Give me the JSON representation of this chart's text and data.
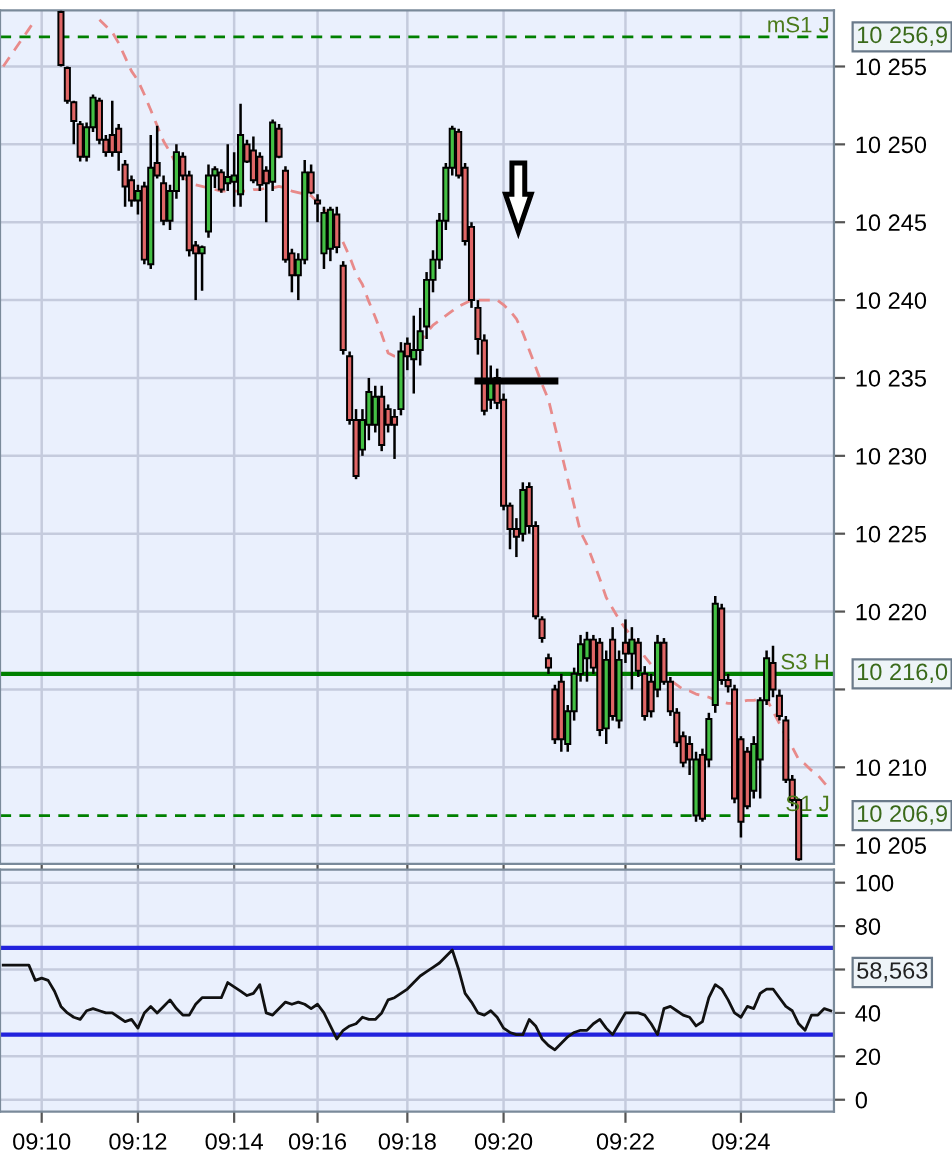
{
  "chart_data": [
    {
      "type": "candlestick",
      "categories": [
        null,
        null,
        null,
        null,
        null,
        null,
        null,
        null,
        null,
        null,
        null,
        null,
        null,
        null,
        null,
        null,
        null,
        null,
        null,
        null,
        null,
        null,
        null,
        null,
        null,
        null,
        null,
        null,
        null,
        null,
        null,
        null,
        null,
        null,
        null,
        null,
        null,
        null,
        null,
        null,
        null,
        null,
        null,
        null,
        null,
        null,
        null,
        null,
        null,
        null,
        null,
        null,
        null,
        null,
        null,
        null,
        null,
        null,
        null,
        null,
        null,
        null,
        null,
        null,
        null,
        null,
        null,
        null,
        null,
        null,
        null,
        null,
        null,
        null,
        null,
        null,
        null,
        null,
        null,
        null,
        null,
        null,
        null,
        null,
        null,
        null,
        null,
        null,
        null,
        null,
        null,
        null,
        null,
        null,
        null,
        null,
        null,
        null,
        null,
        null,
        null,
        null,
        null,
        null,
        null,
        null,
        null,
        null,
        null,
        null,
        null,
        null,
        null,
        null,
        null,
        null,
        null,
        null,
        null,
        null,
        null,
        null,
        null,
        null,
        null,
        null,
        null,
        null,
        null,
        null
      ],
      "ohlc": [
        null,
        null,
        null,
        null,
        null,
        null,
        null,
        null,
        null,
        [
          10258.5,
          10258.6,
          10255.0,
          10255.1
        ],
        [
          10254.9,
          10255.0,
          10252.6,
          10252.8
        ],
        [
          10252.7,
          10252.8,
          10250.0,
          10251.5
        ],
        [
          10251.3,
          10251.5,
          10248.9,
          10249.2
        ],
        [
          10249.2,
          10251.4,
          10248.9,
          10251.1
        ],
        [
          10251.1,
          10253.2,
          10250.8,
          10253.0
        ],
        [
          10252.8,
          10253.0,
          10250.0,
          10250.3
        ],
        [
          10250.3,
          10250.6,
          10249.2,
          10249.5
        ],
        [
          10250.6,
          10252.8,
          10249.2,
          10249.5
        ],
        [
          10251.0,
          10251.3,
          10248.3,
          10249.5
        ],
        [
          10248.7,
          10249.0,
          10246.0,
          10247.3
        ],
        [
          10247.7,
          10248.0,
          10246.0,
          10246.4
        ],
        [
          10246.4,
          10247.4,
          10245.5,
          10247.0
        ],
        [
          10247.3,
          10247.6,
          10242.3,
          10242.6
        ],
        [
          10242.3,
          10250.6,
          10242.0,
          10248.5
        ],
        [
          10248.8,
          10251.2,
          10247.8,
          10248.0
        ],
        [
          10247.5,
          10248.0,
          10244.8,
          10245.1
        ],
        [
          10245.1,
          10247.4,
          10244.5,
          10247.0
        ],
        [
          10247.0,
          10250.0,
          10246.5,
          10249.5
        ],
        [
          10249.2,
          10249.5,
          10247.7,
          10248.0
        ],
        [
          10248.0,
          10248.3,
          10242.8,
          10243.2
        ],
        [
          10243.5,
          10243.8,
          10240.0,
          10243.0
        ],
        [
          10243.0,
          10243.5,
          10240.6,
          10243.4
        ],
        [
          10244.4,
          10248.7,
          10244.0,
          10248.0
        ],
        [
          10248.0,
          10248.6,
          10247.2,
          10248.4
        ],
        [
          10248.2,
          10248.4,
          10246.9,
          10247.1
        ],
        [
          10247.5,
          10250.0,
          10247.0,
          10247.9
        ],
        [
          10247.6,
          10249.5,
          10246.0,
          10248.0
        ],
        [
          10246.8,
          10252.6,
          10246.0,
          10250.6
        ],
        [
          10250.0,
          10250.3,
          10248.8,
          10248.9
        ],
        [
          10249.6,
          10250.5,
          10247.5,
          10247.7
        ],
        [
          10249.2,
          10249.5,
          10247.0,
          10247.4
        ],
        [
          10248.3,
          10248.6,
          10245.0,
          10247.5
        ],
        [
          10247.6,
          10251.6,
          10247.0,
          10251.4
        ],
        [
          10251.0,
          10251.3,
          10249.1,
          10249.2
        ],
        [
          10248.3,
          10248.6,
          10242.4,
          10242.6
        ],
        [
          10243.0,
          10243.3,
          10240.5,
          10241.6
        ],
        [
          10241.6,
          10243.0,
          10240.0,
          10242.6
        ],
        [
          10242.6,
          10249.0,
          10242.3,
          10248.2
        ],
        [
          10248.2,
          10248.7,
          10246.8,
          10246.9
        ],
        [
          10246.4,
          10246.8,
          10245.0,
          10246.2
        ],
        [
          10243.0,
          10246.0,
          10242.0,
          10245.6
        ],
        [
          10243.3,
          10246.0,
          10242.5,
          10245.8
        ],
        [
          10245.5,
          10246.0,
          10243.0,
          10243.4
        ],
        [
          10242.2,
          10242.5,
          10236.5,
          10236.8
        ],
        [
          10236.4,
          10236.7,
          10232.0,
          10232.3
        ],
        [
          10232.3,
          10233.0,
          10228.5,
          10228.7
        ],
        [
          10230.4,
          10233.0,
          10230.0,
          10232.3
        ],
        [
          10232.0,
          10235.0,
          10231.0,
          10234.1
        ],
        [
          10232.0,
          10234.5,
          10231.5,
          10233.8
        ],
        [
          10233.8,
          10234.5,
          10230.3,
          10230.7
        ],
        [
          10233.0,
          10233.3,
          10231.5,
          10232.0
        ],
        [
          10232.5,
          10233.0,
          10229.8,
          10232.0
        ],
        [
          10233.0,
          10237.3,
          10232.6,
          10236.7
        ],
        [
          10237.2,
          10237.6,
          10235.5,
          10236.4
        ],
        [
          10236.2,
          10239.0,
          10234.0,
          10236.8
        ],
        [
          10236.8,
          10239.5,
          10235.8,
          10238.0
        ],
        [
          10238.3,
          10241.8,
          10237.5,
          10241.3
        ],
        [
          10241.3,
          10243.2,
          10240.5,
          10242.6
        ],
        [
          10242.6,
          10245.6,
          10242.0,
          10245.1
        ],
        [
          10245.1,
          10248.8,
          10244.5,
          10248.5
        ],
        [
          10248.5,
          10251.2,
          10248.0,
          10251.0
        ],
        [
          10250.8,
          10251.0,
          10247.8,
          10248.0
        ],
        [
          10248.5,
          10248.8,
          10243.5,
          10243.8
        ],
        [
          10244.7,
          10245.0,
          10239.5,
          10240.0
        ],
        [
          10239.5,
          10240.0,
          10236.5,
          10237.5
        ],
        [
          10237.4,
          10237.8,
          10232.6,
          10232.9
        ],
        [
          10233.6,
          10235.8,
          10233.0,
          10234.9
        ],
        [
          10235.0,
          10235.6,
          10233.0,
          10233.4
        ],
        [
          10233.6,
          10234.0,
          10226.5,
          10226.8
        ],
        [
          10226.8,
          10227.0,
          10224.0,
          10225.3
        ],
        [
          10225.3,
          10226.0,
          10223.5,
          10224.8
        ],
        [
          10225.0,
          10228.3,
          10224.5,
          10227.8
        ],
        [
          10228.0,
          10228.3,
          10225.0,
          10225.5
        ],
        [
          10225.5,
          10225.8,
          10219.5,
          10219.7
        ],
        [
          10219.5,
          10219.7,
          10218.0,
          10218.3
        ],
        [
          10217.0,
          10217.3,
          10216.0,
          10216.4
        ],
        [
          10215.0,
          10215.3,
          10211.5,
          10211.8
        ],
        [
          10215.5,
          10216.0,
          10211.0,
          10211.8
        ],
        [
          10211.5,
          10214.0,
          10211.0,
          10213.6
        ],
        [
          10213.6,
          10216.4,
          10213.0,
          10216.0
        ],
        [
          10216.0,
          10218.5,
          10215.5,
          10217.9
        ],
        [
          10217.0,
          10218.7,
          10215.5,
          10218.2
        ],
        [
          10218.2,
          10218.5,
          10216.0,
          10216.4
        ],
        [
          10218.0,
          10218.3,
          10212.0,
          10212.4
        ],
        [
          10212.5,
          10217.5,
          10211.5,
          10216.9
        ],
        [
          10218.2,
          10219.0,
          10213.0,
          10213.3
        ],
        [
          10213.0,
          10217.5,
          10212.5,
          10216.9
        ],
        [
          10218.0,
          10219.5,
          10216.7,
          10217.3
        ],
        [
          10217.3,
          10219.0,
          10215.0,
          10218.2
        ],
        [
          10218.0,
          10218.3,
          10215.8,
          10216.2
        ],
        [
          10216.0,
          10216.5,
          10213.0,
          10213.3
        ],
        [
          10215.5,
          10216.0,
          10213.2,
          10213.6
        ],
        [
          10215.0,
          10218.5,
          10214.5,
          10218.0
        ],
        [
          10218.0,
          10218.3,
          10215.3,
          10215.5
        ],
        [
          10215.5,
          10215.8,
          10213.3,
          10213.6
        ],
        [
          10213.5,
          10213.8,
          10211.3,
          10211.6
        ],
        [
          10212.0,
          10212.3,
          10210.0,
          10210.3
        ],
        [
          10211.5,
          10212.0,
          10209.5,
          10210.5
        ],
        [
          10206.9,
          10211.0,
          10206.5,
          10210.5
        ],
        [
          10210.8,
          10211.2,
          10206.5,
          10206.7
        ],
        [
          10210.5,
          10213.5,
          10210.0,
          10213.1
        ],
        [
          10214.0,
          10221.0,
          10213.5,
          10220.5
        ],
        [
          10220.2,
          10220.5,
          10215.3,
          10215.6
        ],
        [
          10215.6,
          10216.0,
          10214.8,
          10215.2
        ],
        [
          10215.0,
          10215.3,
          10207.7,
          10208.0
        ],
        [
          10211.8,
          10212.0,
          10205.5,
          10206.5
        ],
        [
          10211.0,
          10211.3,
          10207.3,
          10207.5
        ],
        [
          10208.5,
          10212.0,
          10208.0,
          10211.5
        ],
        [
          10210.5,
          10214.5,
          10208.0,
          10214.3
        ],
        [
          10214.3,
          10217.5,
          10214.0,
          10217.0
        ],
        [
          10216.7,
          10217.8,
          10214.5,
          10215.0
        ],
        [
          10214.6,
          10215.0,
          10213.0,
          10213.3
        ],
        [
          10213.0,
          10213.3,
          10209.0,
          10209.2
        ],
        [
          10209.2,
          10209.5,
          10207.5,
          10207.9
        ],
        [
          10207.9,
          10208.0,
          10204.0,
          10204.1
        ],
        null,
        null,
        null,
        null,
        null
      ],
      "colors": [
        null,
        null,
        null,
        null,
        null,
        null,
        null,
        null,
        null,
        "#e06666",
        "#e06666",
        "#e06666",
        "#e06666",
        "#44c044",
        "#44c044",
        "#e06666",
        "#e06666",
        "#e06666",
        "#e06666",
        "#e06666",
        "#e06666",
        "#44c044",
        "#e06666",
        "#44c044",
        "#e06666",
        "#e06666",
        "#44c044",
        "#44c044",
        "#e06666",
        "#e06666",
        "#e06666",
        "#44c044",
        "#44c044",
        "#44c044",
        "#e06666",
        "#44c044",
        "#44c044",
        "#44c044",
        "#e06666",
        "#e06666",
        "#e06666",
        "#e06666",
        "#44c044",
        "#e06666",
        "#e06666",
        "#e06666",
        "#44c044",
        "#44c044",
        "#e06666",
        "#e06666",
        "#44c044",
        "#44c044",
        "#e06666",
        "#e06666",
        "#e06666",
        "#e06666",
        "#44c044",
        "#44c044",
        "#44c044",
        "#e06666",
        "#e06666",
        "#e06666",
        "#44c044",
        "#e06666",
        "#44c044",
        "#44c044",
        "#44c044",
        "#44c044",
        "#44c044",
        "#44c044",
        "#44c044",
        "#e06666",
        "#e06666",
        "#e06666",
        "#e06666",
        "#e06666",
        "#44c044",
        "#e06666",
        "#e06666",
        "#e06666",
        "#e06666",
        "#44c044",
        "#e06666",
        "#e06666",
        "#e06666",
        "#e06666",
        "#e06666",
        "#e06666",
        "#44c044",
        "#44c044",
        "#44c044",
        "#44c044",
        "#e06666",
        "#e06666",
        "#44c044",
        "#e06666",
        "#44c044",
        "#e06666",
        "#44c044",
        "#e06666",
        "#e06666",
        "#e06666",
        "#44c044",
        "#e06666",
        "#e06666",
        "#e06666",
        "#e06666",
        "#e06666",
        "#44c044",
        "#e06666",
        "#44c044",
        "#44c044",
        "#e06666",
        "#e06666",
        "#e06666",
        "#e06666",
        "#e06666",
        "#44c044",
        "#44c044",
        "#44c044",
        "#e06666",
        "#e06666",
        "#e06666",
        "#e06666",
        "#e06666",
        null,
        null,
        null,
        null,
        null
      ],
      "series": [
        {
          "type": "line",
          "color": "#e88a8a",
          "line_style": "dashed",
          "values": [
            10255.0,
            10255.6,
            10256.2,
            10256.8,
            10257.4,
            10258.0,
            null,
            null,
            null,
            null,
            null,
            null,
            null,
            null,
            null,
            10258.0,
            10257.6,
            10257.2,
            10256.5,
            10255.6,
            10254.7,
            10254.1,
            10253.2,
            10252.2,
            10251.2,
            10250.2,
            10249.5,
            10248.7,
            10247.9,
            10247.6,
            10247.4,
            10247.3,
            10247.2,
            10247.1,
            10247.0,
            10247.0,
            10247.0,
            10247.0,
            10247.0,
            10247.1,
            10247.1,
            10247.2,
            10247.2,
            10247.3,
            10247.2,
            10247.0,
            10246.9,
            10246.8,
            10246.7,
            10246.3,
            10245.8,
            10245.4,
            10244.5,
            10243.7,
            10242.8,
            10241.7,
            10241.0,
            10239.9,
            10238.9,
            10237.8,
            10236.6,
            10236.4,
            10236.4,
            10236.6,
            10236.7,
            10237.3,
            10237.9,
            10238.4,
            10238.7,
            10239.0,
            10239.3,
            10239.6,
            10239.8,
            10240.0,
            10240.0,
            10240.0,
            10240.0,
            10240.0,
            10239.7,
            10239.3,
            10238.8,
            10237.9,
            10236.8,
            10235.7,
            10234.6,
            10233.6,
            10231.9,
            10230.2,
            10228.5,
            10226.8,
            10225.1,
            10224.3,
            10223.2,
            10222.1,
            10220.9,
            10220.2,
            10219.5,
            10218.9,
            10218.4,
            10217.8,
            10217.1,
            10216.6,
            10216.3,
            10216.0,
            10215.6,
            10215.3,
            10215.0,
            10214.9,
            10214.7,
            10214.6,
            10214.5,
            10214.3,
            10214.2,
            10214.1,
            10214.1,
            10214.2,
            10214.3,
            10214.3,
            10214.4,
            10214.4,
            10213.6,
            10212.8,
            10212.0,
            10211.3,
            10210.5,
            10210.2,
            10209.8,
            10209.5,
            10209.0,
            10208.6
          ]
        }
      ],
      "ylim": [
        10203.8,
        10258.6
      ],
      "yticks": [
        {
          "value": 10205,
          "label": "10 205"
        },
        {
          "value": 10210,
          "label": "10 210"
        },
        {
          "value": 10215,
          "label": null
        },
        {
          "value": 10220,
          "label": "10 220"
        },
        {
          "value": 10225,
          "label": "10 225"
        },
        {
          "value": 10230,
          "label": "10 230"
        },
        {
          "value": 10235,
          "label": "10 235"
        },
        {
          "value": 10240,
          "label": "10 240"
        },
        {
          "value": 10245,
          "label": "10 245"
        },
        {
          "value": 10250,
          "label": "10 250"
        },
        {
          "value": 10255,
          "label": "10 255"
        }
      ],
      "tick_labels": "y",
      "grid": true,
      "ref_lines": [
        {
          "axis": "y",
          "value": 10256.9,
          "label": "mS1 J",
          "color": "#008000",
          "line_style": "dashed"
        },
        {
          "axis": "y",
          "value": 10216.0,
          "label": "S3 H",
          "color": "#008000",
          "line_style": "solid"
        },
        {
          "axis": "y",
          "value": 10206.9,
          "label": "S1 J",
          "color": "#008000",
          "line_style": "dashed"
        }
      ],
      "annotations": [
        "10 256,9",
        "10 216,0",
        "10 206,9"
      ]
    },
    {
      "type": "line",
      "categories": [
        null,
        null,
        null,
        null,
        null,
        null,
        "09:10",
        null,
        null,
        null,
        null,
        null,
        null,
        null,
        null,
        null,
        null,
        null,
        null,
        null,
        null,
        "09:12",
        null,
        null,
        null,
        null,
        null,
        null,
        null,
        null,
        null,
        null,
        null,
        null,
        null,
        null,
        "09:14",
        null,
        null,
        null,
        null,
        null,
        null,
        null,
        null,
        null,
        null,
        null,
        null,
        "09:16",
        null,
        null,
        null,
        null,
        null,
        null,
        null,
        null,
        null,
        null,
        null,
        null,
        null,
        "09:18",
        null,
        null,
        null,
        null,
        null,
        null,
        null,
        null,
        null,
        null,
        null,
        null,
        null,
        null,
        "09:20",
        null,
        null,
        null,
        null,
        null,
        null,
        null,
        null,
        null,
        null,
        null,
        null,
        null,
        null,
        null,
        null,
        null,
        null,
        "09:22",
        null,
        null,
        null,
        null,
        null,
        null,
        null,
        null,
        null,
        null,
        null,
        null,
        null,
        null,
        null,
        null,
        null,
        "09:24",
        null,
        null,
        null,
        null,
        null,
        null,
        null,
        null,
        null,
        null,
        null,
        null,
        null,
        null
      ],
      "series": [
        {
          "color": "#111111",
          "values": [
            62,
            62,
            62,
            62,
            62,
            55,
            56,
            55,
            50,
            43,
            40,
            38,
            37,
            41,
            42,
            41,
            40,
            40,
            38,
            36,
            37,
            33,
            40,
            43,
            40,
            43,
            46,
            42,
            39,
            39,
            44,
            47,
            47,
            47,
            47,
            54,
            52,
            50,
            48,
            49,
            53,
            40,
            39,
            42,
            45,
            44,
            45,
            44,
            42,
            44,
            40,
            34,
            28,
            32,
            34,
            35,
            38,
            37,
            37,
            40,
            46,
            47,
            49,
            51,
            54,
            57,
            59,
            61,
            63,
            66,
            69,
            60,
            49,
            45,
            40,
            39,
            41,
            38,
            33,
            31,
            30,
            30,
            37,
            34,
            28,
            25,
            23,
            26,
            29,
            31,
            32,
            32,
            35,
            37,
            33,
            30,
            35,
            40,
            40,
            40,
            39,
            35,
            30,
            42,
            43,
            41,
            39,
            38,
            34,
            36,
            47,
            53,
            51,
            46,
            40,
            38,
            43,
            42,
            49,
            51,
            51,
            47,
            43,
            41,
            35,
            32,
            39,
            39,
            42,
            41
          ]
        }
      ],
      "ylim": [
        -5.5,
        106
      ],
      "yticks": [
        0,
        20,
        40,
        {
          "value": 60,
          "label": null
        },
        80,
        100
      ],
      "grid": true,
      "ref_lines": [
        {
          "axis": "y",
          "value": 70,
          "color": "#2222dd"
        },
        {
          "axis": "y",
          "value": 30,
          "color": "#2222dd"
        }
      ],
      "annotations": [
        "58,563"
      ]
    }
  ]
}
